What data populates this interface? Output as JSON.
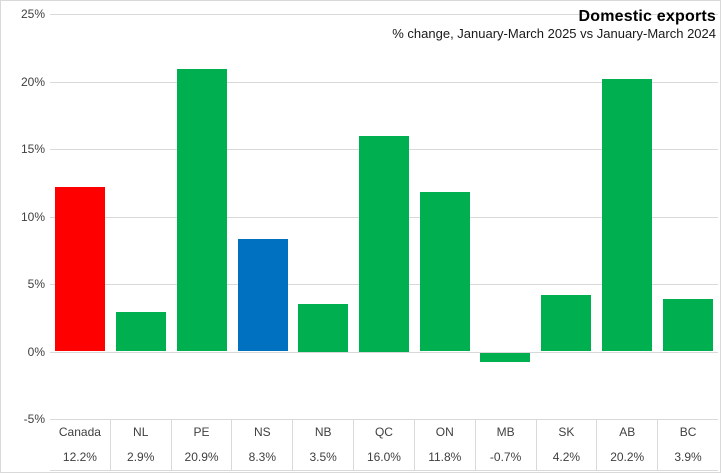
{
  "header": {
    "title": "Domestic exports",
    "subtitle": "% change, January-March 2025 vs January-March 2024"
  },
  "chart_data": {
    "type": "bar",
    "title": "Domestic exports",
    "subtitle": "% change, January-March 2025 vs January-March 2024",
    "categories": [
      "Canada",
      "NL",
      "PE",
      "NS",
      "NB",
      "QC",
      "ON",
      "MB",
      "SK",
      "AB",
      "BC"
    ],
    "values": [
      12.2,
      2.9,
      20.9,
      8.3,
      3.5,
      16.0,
      11.8,
      -0.7,
      4.2,
      20.2,
      3.9
    ],
    "value_labels": [
      "12.2%",
      "2.9%",
      "20.9%",
      "8.3%",
      "3.5%",
      "16.0%",
      "11.8%",
      "-0.7%",
      "4.2%",
      "20.2%",
      "3.9%"
    ],
    "bar_colors": [
      "#ff0000",
      "#00b050",
      "#00b050",
      "#0070c0",
      "#00b050",
      "#00b050",
      "#00b050",
      "#00b050",
      "#00b050",
      "#00b050",
      "#00b050"
    ],
    "xlabel": "",
    "ylabel": "",
    "ylim": [
      -5,
      25
    ],
    "ytick_step": 5,
    "ytick_labels": [
      "25%",
      "20%",
      "15%",
      "10%",
      "5%",
      "0%",
      "-5%"
    ],
    "grid": true,
    "legend_position": "none",
    "data_table_below_axis": true
  },
  "colors": {
    "grid": "#d9d9d9",
    "frame_border": "#d9d9d9",
    "axis_text": "#404040",
    "title_text": "#000000",
    "canada_bar": "#ff0000",
    "ns_bar": "#0070c0",
    "default_bar": "#00b050"
  }
}
